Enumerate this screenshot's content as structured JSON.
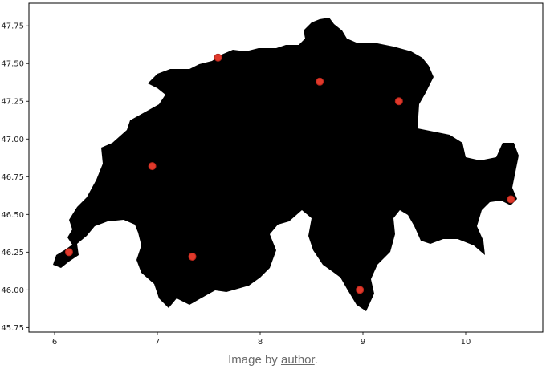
{
  "chart_data": {
    "type": "scatter",
    "title": "",
    "xlabel": "",
    "ylabel": "",
    "xlim": [
      5.75,
      10.75
    ],
    "ylim": [
      45.72,
      47.9
    ],
    "x_ticks": [
      6,
      7,
      8,
      9,
      10
    ],
    "y_ticks": [
      45.75,
      46.0,
      46.25,
      46.5,
      46.75,
      47.0,
      47.25,
      47.5,
      47.75
    ],
    "grid": false,
    "legend": "none",
    "background_shape": "black silhouette map of Switzerland",
    "points": [
      {
        "x": 6.14,
        "y": 46.25
      },
      {
        "x": 6.95,
        "y": 46.82
      },
      {
        "x": 7.34,
        "y": 46.22
      },
      {
        "x": 7.59,
        "y": 47.54
      },
      {
        "x": 8.58,
        "y": 47.38
      },
      {
        "x": 8.97,
        "y": 46.0
      },
      {
        "x": 9.35,
        "y": 47.25
      },
      {
        "x": 10.44,
        "y": 46.6
      }
    ],
    "marker_color": "#e0392b",
    "shape_color": "#000000"
  },
  "caption": {
    "prefix": "Image by ",
    "link": "author",
    "suffix": "."
  }
}
